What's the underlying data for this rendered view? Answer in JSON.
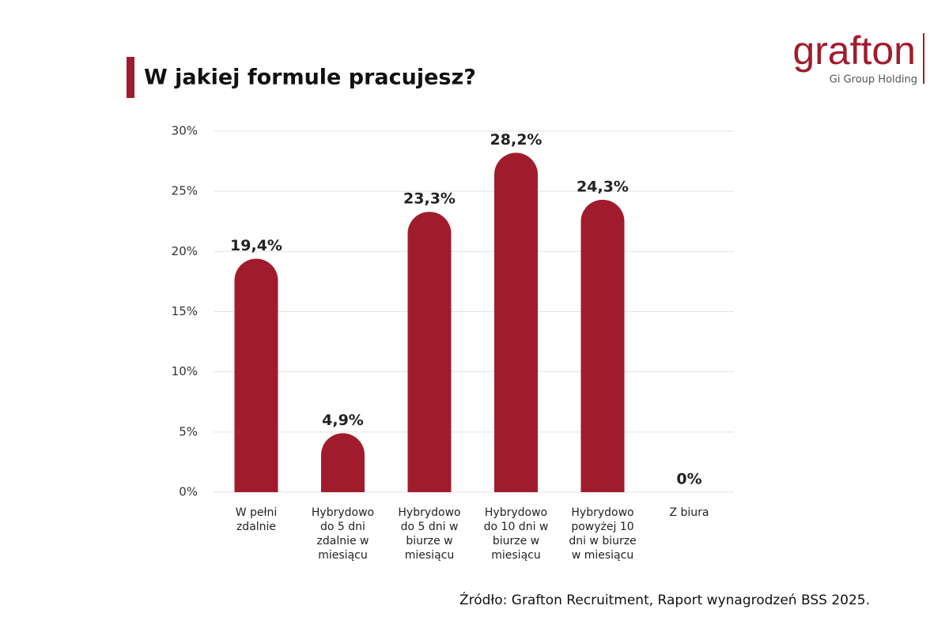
{
  "chart_data": {
    "type": "bar",
    "title": "W jakiej formule pracujesz?",
    "logo": "grafton",
    "logo_subtitle": "Gi Group Holding",
    "source": "Źródło: Grafton Recruitment, Raport wynagrodzeń BSS 2025.",
    "categories": [
      "W pełni zdalnie",
      "Hybrydowo do 5 dni zdalnie w miesiącu",
      "Hybrydowo do 5 dni w biurze w miesiącu",
      "Hybrydowo do 10 dni w biurze w miesiącu",
      "Hybrydowo powyżej 10 dni w biurze w miesiącu",
      "Z biura"
    ],
    "values": [
      19.4,
      4.9,
      23.3,
      28.2,
      24.3,
      0
    ],
    "value_labels": [
      "19,4%",
      "4,9%",
      "23,3%",
      "28,2%",
      "24,3%",
      "0%"
    ],
    "color": "#a01c2c",
    "ylim": [
      0,
      30
    ],
    "yticks": [
      {
        "value": 0,
        "label": "0%"
      },
      {
        "value": 5,
        "label": "5%"
      },
      {
        "value": 10,
        "label": "10%"
      },
      {
        "value": 15,
        "label": "15%"
      },
      {
        "value": 20,
        "label": "20%"
      },
      {
        "value": 25,
        "label": "25%"
      },
      {
        "value": 30,
        "label": "30%"
      }
    ],
    "grid": true
  }
}
